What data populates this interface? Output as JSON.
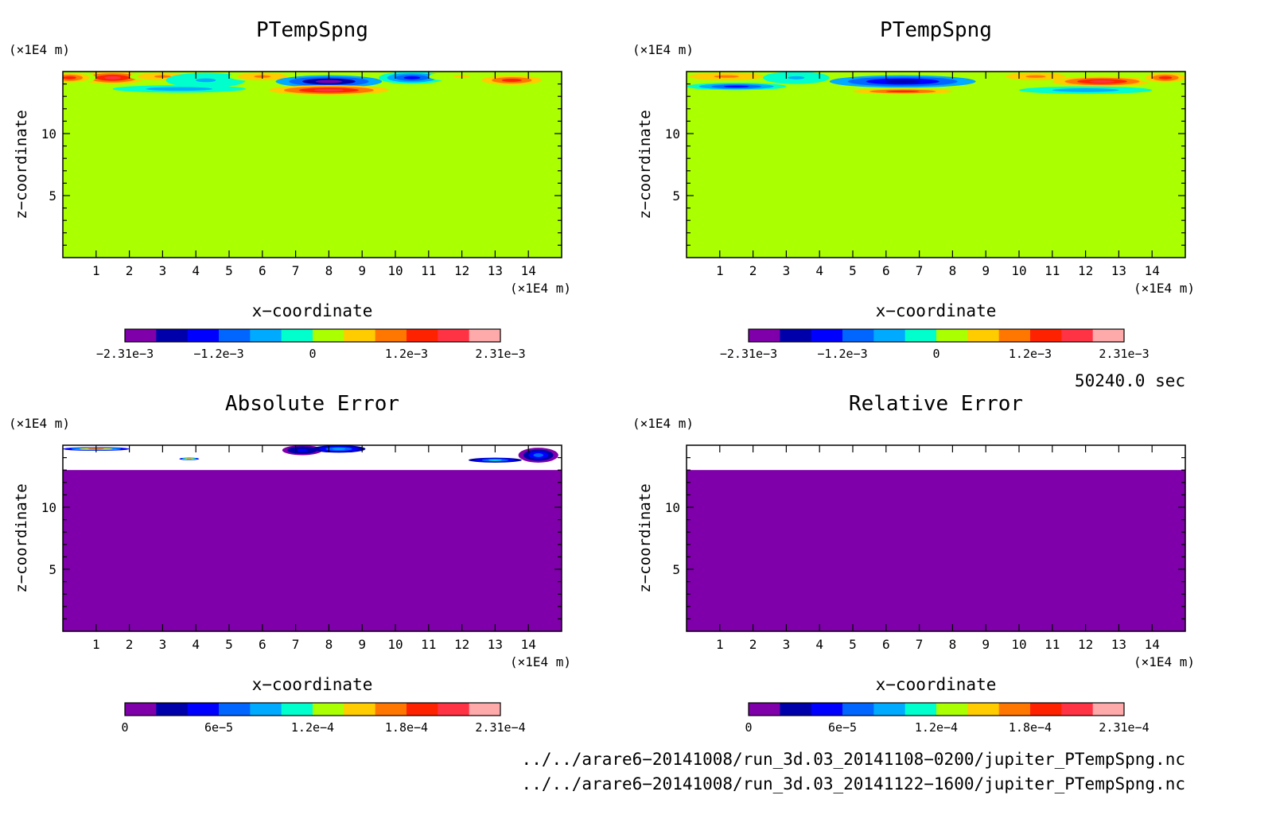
{
  "chart_data": [
    {
      "type": "heatmap",
      "title": "PTempSpng",
      "xlabel": "x−coordinate",
      "ylabel": "z−coordinate",
      "x_unit": "(×1E4 m)",
      "y_unit": "(×1E4 m)",
      "xlim": [
        0,
        15
      ],
      "ylim": [
        0,
        15
      ],
      "x_ticks": [
        "1",
        "2",
        "3",
        "4",
        "5",
        "6",
        "7",
        "8",
        "9",
        "10",
        "11",
        "12",
        "13",
        "14"
      ],
      "y_ticks": [
        "5",
        "10"
      ],
      "colorbar": {
        "colors": [
          "#7f00aa",
          "#0000aa",
          "#0000ff",
          "#0066ff",
          "#00aaff",
          "#00ffcc",
          "#aaff00",
          "#ffcc00",
          "#ff7700",
          "#ff2200",
          "#ff3344",
          "#ffaaaa"
        ],
        "tick_labels": [
          "−2.31e−3",
          "−1.2e−3",
          "0",
          "1.2e−3",
          "2.31e−3"
        ],
        "range": [
          -0.00231,
          0.00231
        ]
      },
      "background_value": 0,
      "structure_zmin": 13,
      "blobs": [
        {
          "x": 1.5,
          "z": 14.5,
          "rx": 1.0,
          "rz": 0.5,
          "v": 0.0018
        },
        {
          "x": 0.2,
          "z": 14.5,
          "rx": 0.8,
          "rz": 0.5,
          "v": 0.0012
        },
        {
          "x": 3.0,
          "z": 14.6,
          "rx": 1.0,
          "rz": 0.4,
          "v": 0.0009
        },
        {
          "x": 4.3,
          "z": 14.3,
          "rx": 1.2,
          "rz": 0.6,
          "v": -0.0005
        },
        {
          "x": 6.0,
          "z": 14.6,
          "rx": 1.0,
          "rz": 0.4,
          "v": 0.0008
        },
        {
          "x": 8.0,
          "z": 14.2,
          "rx": 1.6,
          "rz": 0.5,
          "v": -0.0022
        },
        {
          "x": 10.5,
          "z": 14.5,
          "rx": 1.0,
          "rz": 0.5,
          "v": -0.0012
        },
        {
          "x": 8.0,
          "z": 13.5,
          "rx": 1.8,
          "rz": 0.4,
          "v": 0.0016
        },
        {
          "x": 12.0,
          "z": 14.6,
          "rx": 1.0,
          "rz": 0.4,
          "v": 0.0004
        },
        {
          "x": 13.5,
          "z": 14.3,
          "rx": 1.2,
          "rz": 0.5,
          "v": 0.0015
        },
        {
          "x": 3.5,
          "z": 13.6,
          "rx": 2.0,
          "rz": 0.3,
          "v": -0.0007
        }
      ]
    },
    {
      "type": "heatmap",
      "title": "PTempSpng",
      "xlabel": "x−coordinate",
      "ylabel": "z−coordinate",
      "x_unit": "(×1E4 m)",
      "y_unit": "(×1E4 m)",
      "xlim": [
        0,
        15
      ],
      "ylim": [
        0,
        15
      ],
      "x_ticks": [
        "1",
        "2",
        "3",
        "4",
        "5",
        "6",
        "7",
        "8",
        "9",
        "10",
        "11",
        "12",
        "13",
        "14"
      ],
      "y_ticks": [
        "5",
        "10"
      ],
      "colorbar": {
        "colors": [
          "#7f00aa",
          "#0000aa",
          "#0000ff",
          "#0066ff",
          "#00aaff",
          "#00ffcc",
          "#aaff00",
          "#ffcc00",
          "#ff7700",
          "#ff2200",
          "#ff3344",
          "#ffaaaa"
        ],
        "tick_labels": [
          "−2.31e−3",
          "−1.2e−3",
          "0",
          "1.2e−3",
          "2.31e−3"
        ],
        "range": [
          -0.00231,
          0.00231
        ]
      },
      "background_value": 0,
      "structure_zmin": 13,
      "blobs": [
        {
          "x": 1.2,
          "z": 14.6,
          "rx": 1.5,
          "rz": 0.4,
          "v": 0.001
        },
        {
          "x": 1.5,
          "z": 13.8,
          "rx": 1.5,
          "rz": 0.3,
          "v": -0.0012
        },
        {
          "x": 3.3,
          "z": 14.5,
          "rx": 1.0,
          "rz": 0.5,
          "v": -0.0004
        },
        {
          "x": 6.5,
          "z": 14.2,
          "rx": 2.2,
          "rz": 0.5,
          "v": -0.0018
        },
        {
          "x": 6.5,
          "z": 13.4,
          "rx": 2.0,
          "rz": 0.3,
          "v": 0.0015
        },
        {
          "x": 10.5,
          "z": 14.6,
          "rx": 1.2,
          "rz": 0.4,
          "v": 0.0008
        },
        {
          "x": 12.5,
          "z": 14.2,
          "rx": 1.5,
          "rz": 0.4,
          "v": 0.0016
        },
        {
          "x": 12.0,
          "z": 13.5,
          "rx": 2.0,
          "rz": 0.3,
          "v": -0.0006
        },
        {
          "x": 14.4,
          "z": 14.5,
          "rx": 0.8,
          "rz": 0.5,
          "v": 0.0012
        }
      ]
    },
    {
      "type": "heatmap",
      "title": "Absolute Error",
      "xlabel": "x−coordinate",
      "ylabel": "z−coordinate",
      "x_unit": "(×1E4 m)",
      "y_unit": "(×1E4 m)",
      "xlim": [
        0,
        15
      ],
      "ylim": [
        0,
        15
      ],
      "x_ticks": [
        "1",
        "2",
        "3",
        "4",
        "5",
        "6",
        "7",
        "8",
        "9",
        "10",
        "11",
        "12",
        "13",
        "14"
      ],
      "y_ticks": [
        "5",
        "10"
      ],
      "colorbar": {
        "colors": [
          "#7f00aa",
          "#0000aa",
          "#0000ff",
          "#0066ff",
          "#00aaff",
          "#00ffcc",
          "#aaff00",
          "#ffcc00",
          "#ff7700",
          "#ff2200",
          "#ff3344",
          "#ffaaaa"
        ],
        "tick_labels": [
          "0",
          "6e−5",
          "1.2e−4",
          "1.8e−4",
          "2.31e−4"
        ],
        "range": [
          0,
          0.000231
        ]
      },
      "background_value": 0,
      "white_band": [
        13,
        15
      ],
      "blobs": [
        {
          "x": 7.2,
          "z": 14.6,
          "rx": 0.6,
          "rz": 0.4,
          "v": 5e-05
        },
        {
          "x": 8.3,
          "z": 14.7,
          "rx": 0.8,
          "rz": 0.3,
          "v": 8e-05
        },
        {
          "x": 14.3,
          "z": 14.2,
          "rx": 0.6,
          "rz": 0.6,
          "v": 6e-05
        },
        {
          "x": 13.0,
          "z": 13.8,
          "rx": 0.8,
          "rz": 0.2,
          "v": 0.0001
        },
        {
          "x": 1.0,
          "z": 14.7,
          "rx": 1.0,
          "rz": 0.15,
          "v": 0.00018
        },
        {
          "x": 3.8,
          "z": 13.9,
          "rx": 0.3,
          "rz": 0.1,
          "v": 0.0002
        }
      ]
    },
    {
      "type": "heatmap",
      "title": "Relative Error",
      "xlabel": "x−coordinate",
      "ylabel": "z−coordinate",
      "x_unit": "(×1E4 m)",
      "y_unit": "(×1E4 m)",
      "xlim": [
        0,
        15
      ],
      "ylim": [
        0,
        15
      ],
      "x_ticks": [
        "1",
        "2",
        "3",
        "4",
        "5",
        "6",
        "7",
        "8",
        "9",
        "10",
        "11",
        "12",
        "13",
        "14"
      ],
      "y_ticks": [
        "5",
        "10"
      ],
      "colorbar": {
        "colors": [
          "#7f00aa",
          "#0000aa",
          "#0000ff",
          "#0066ff",
          "#00aaff",
          "#00ffcc",
          "#aaff00",
          "#ffcc00",
          "#ff7700",
          "#ff2200",
          "#ff3344",
          "#ffaaaa"
        ],
        "tick_labels": [
          "0",
          "6e−5",
          "1.2e−4",
          "1.8e−4",
          "2.31e−4"
        ],
        "range": [
          0,
          0.000231
        ]
      },
      "background_value": 0,
      "white_band": [
        13,
        15
      ],
      "blobs": []
    }
  ],
  "time_label": "50240.0 sec",
  "file_paths": [
    "../../arare6−20141008/run_3d.03_20141108−0200/jupiter_PTempSpng.nc",
    "../../arare6−20141008/run_3d.03_20141122−1600/jupiter_PTempSpng.nc"
  ]
}
